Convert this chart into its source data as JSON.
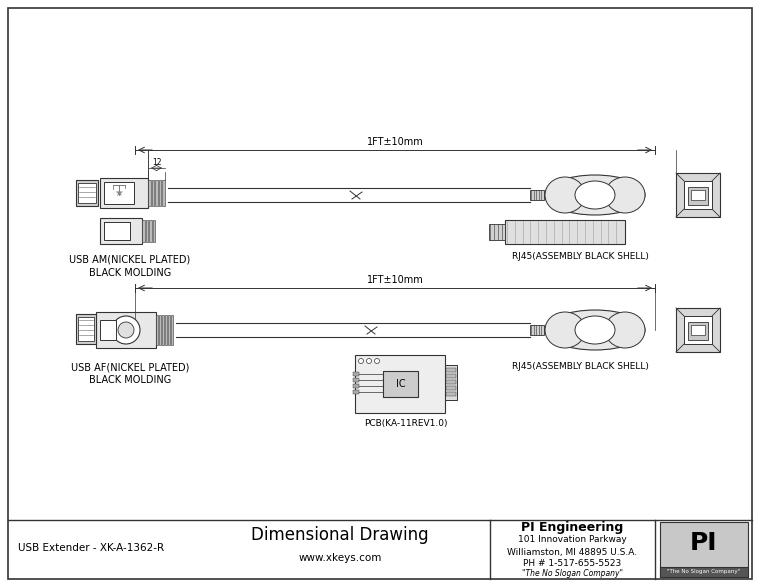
{
  "title": "Dimensional Drawing",
  "subtitle": "www.xkeys.com",
  "part_label": "USB Extender - XK-A-1362-R",
  "company": "PI Engineering",
  "address1": "101 Innovation Parkway",
  "address2": "Williamston, MI 48895 U.S.A.",
  "phone": "PH # 1-517-655-5523",
  "slogan": "\"The No Slogan Company\"",
  "dim_label1": "1FT±10mm",
  "dim_label2": "1FT±10mm",
  "dim_usb_am": "USB AM(NICKEL PLATED)\nBLACK MOLDING",
  "dim_usb_af": "USB AF(NICKEL PLATED)\nBLACK MOLDING",
  "dim_rj45_1": "RJ45(ASSEMBLY BLACK SHELL)",
  "dim_rj45_2": "RJ45(ASSEMBLY BLACK SHELL)",
  "dim_pcb": "PCB(KA-11REV1.0)",
  "dim_12": "12",
  "bg_color": "#ffffff",
  "line_color": "#666666",
  "dark_line": "#333333"
}
